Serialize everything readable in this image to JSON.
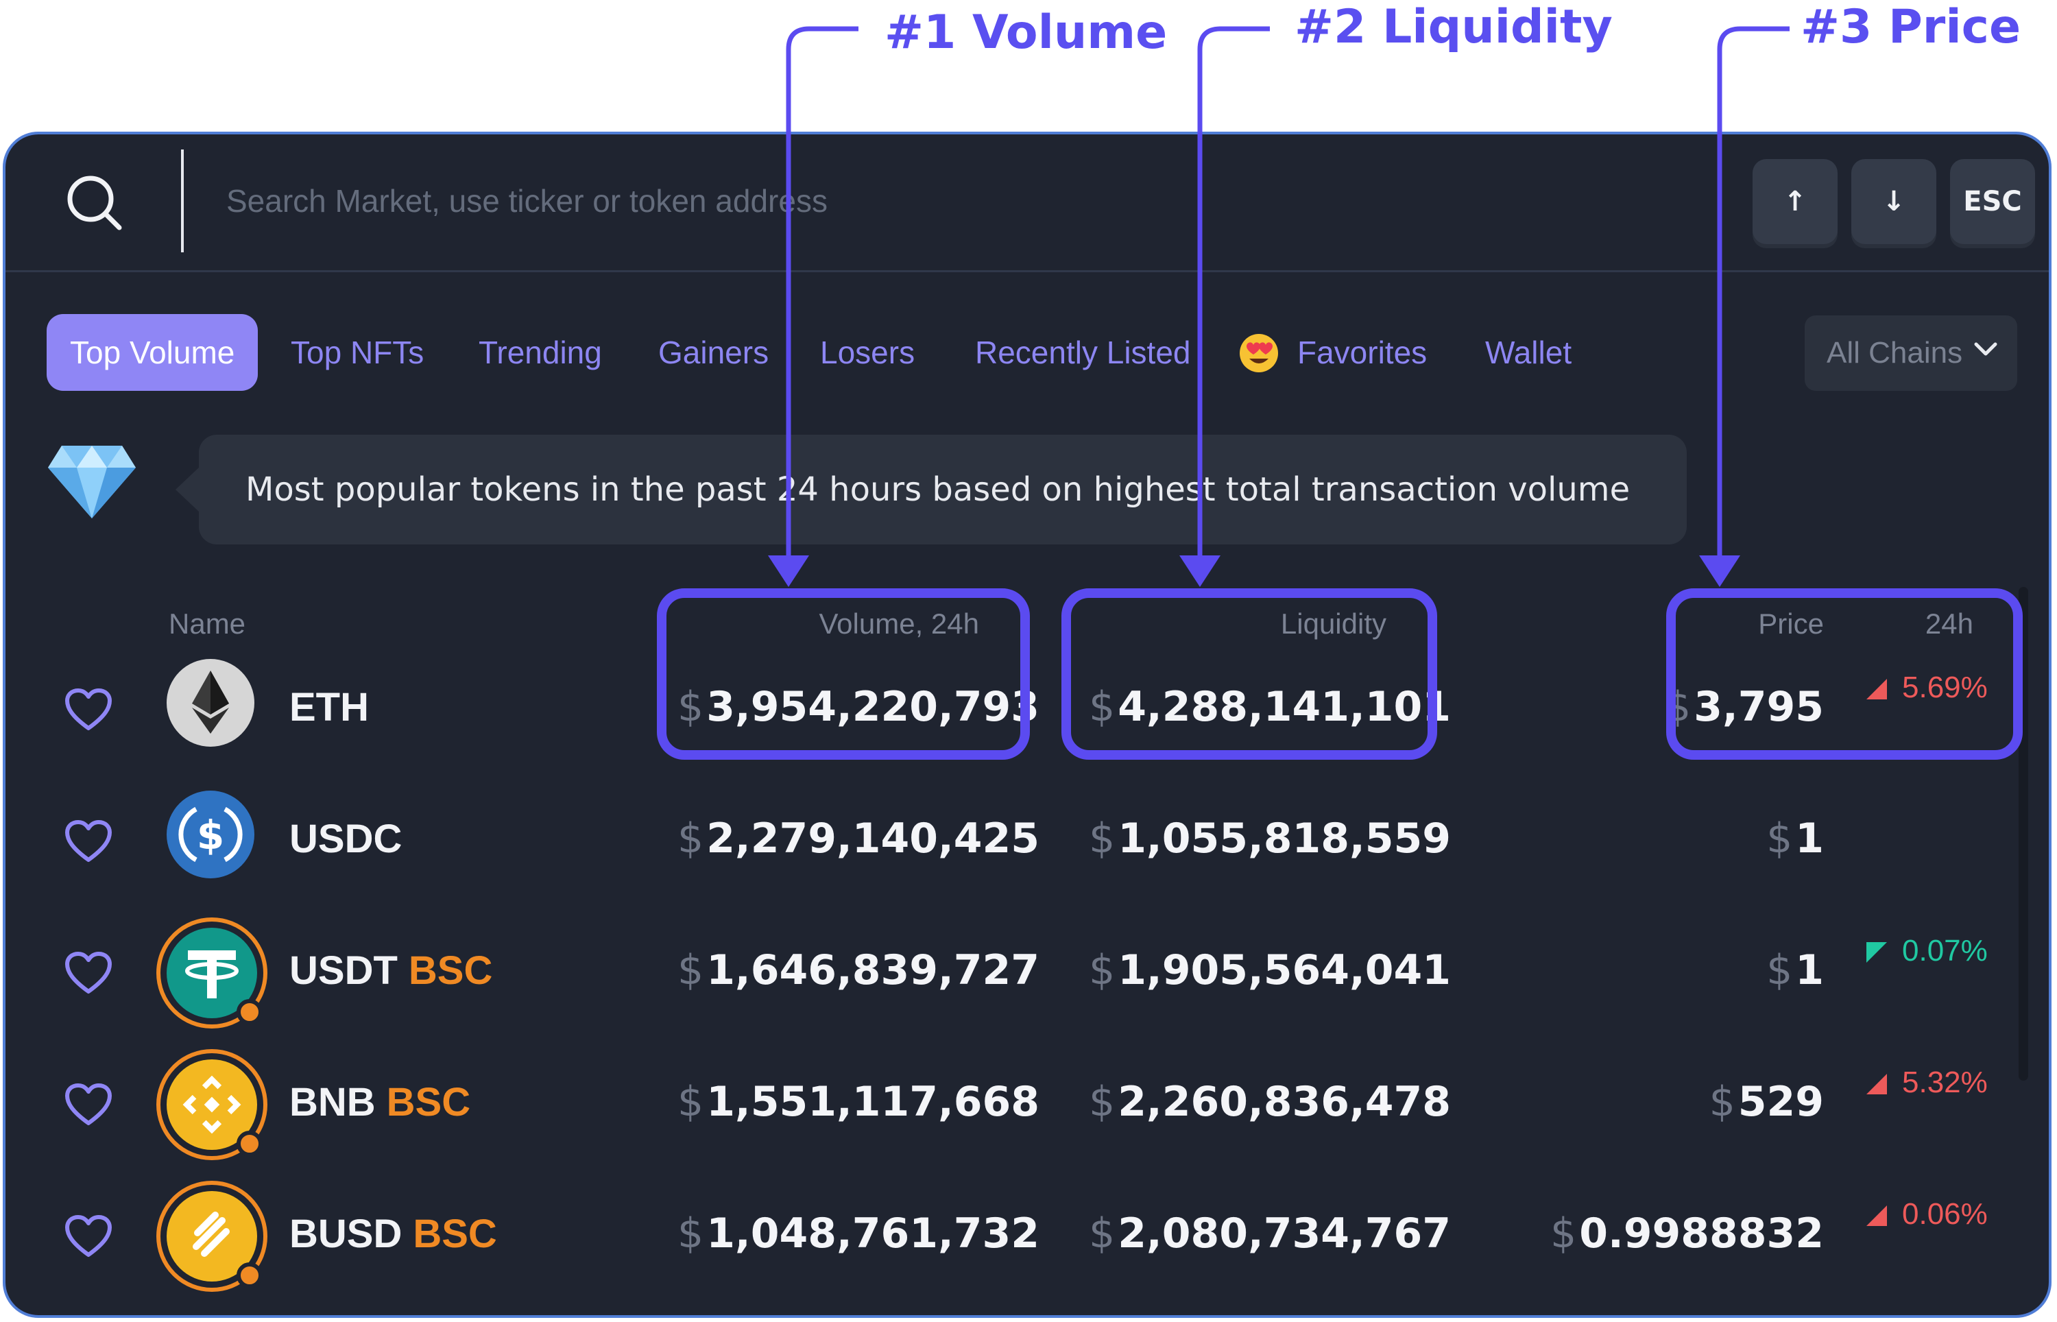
{
  "search": {
    "placeholder": "Search Market, use ticker or token address"
  },
  "keys": {
    "up": "↑",
    "down": "↓",
    "esc": "ESC"
  },
  "tabs": [
    {
      "label": "Top Volume",
      "active": true
    },
    {
      "label": "Top NFTs"
    },
    {
      "label": "Trending"
    },
    {
      "label": "Gainers"
    },
    {
      "label": "Losers"
    },
    {
      "label": "Recently Listed"
    },
    {
      "label": "Favorites",
      "icon": "heart-eyes-emoji-icon"
    },
    {
      "label": "Wallet"
    }
  ],
  "chain_filter": {
    "selected": "All Chains"
  },
  "banner": {
    "text": "Most popular tokens in the past 24 hours based on highest total transaction volume",
    "icon": "diamond-icon"
  },
  "columns": {
    "name": "Name",
    "volume": "Volume, 24h",
    "liquidity": "Liquidity",
    "price": "Price",
    "change": "24h"
  },
  "currency_symbol": "$",
  "rows": [
    {
      "name": "ETH",
      "chain": "",
      "volume": "3,954,220,793",
      "liquidity": "4,288,141,101",
      "price": "3,795",
      "change": "5.69%",
      "direction": "up"
    },
    {
      "name": "USDC",
      "chain": "",
      "volume": "2,279,140,425",
      "liquidity": "1,055,818,559",
      "price": "1",
      "change": "",
      "direction": ""
    },
    {
      "name": "USDT",
      "chain": "BSC",
      "volume": "1,646,839,727",
      "liquidity": "1,905,564,041",
      "price": "1",
      "change": "0.07%",
      "direction": "down"
    },
    {
      "name": "BNB",
      "chain": "BSC",
      "volume": "1,551,117,668",
      "liquidity": "2,260,836,478",
      "price": "529",
      "change": "5.32%",
      "direction": "up"
    },
    {
      "name": "BUSD",
      "chain": "BSC",
      "volume": "1,048,761,732",
      "liquidity": "2,080,734,767",
      "price": "0.9988832",
      "change": "0.06%",
      "direction": "up"
    }
  ],
  "annotations": [
    {
      "label": "#1 Volume"
    },
    {
      "label": "#2 Liquidity"
    },
    {
      "label": "#3 Price"
    }
  ],
  "colors": {
    "panel_bg": "#1f2430",
    "accent": "#8f86f5",
    "annotation": "#5b4bf0",
    "positive_change": "#ee5a5a",
    "negative_change": "#20c9a2",
    "chain_tag": "#f08a24"
  }
}
